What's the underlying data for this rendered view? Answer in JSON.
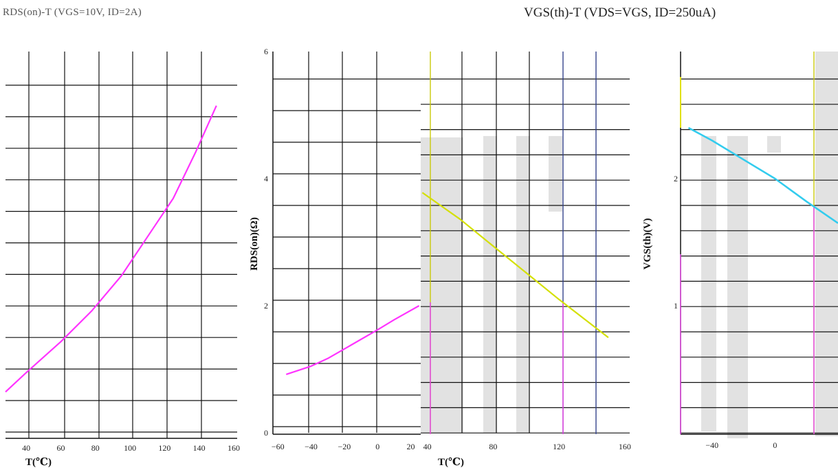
{
  "titles": {
    "left": "RDS(on)-T (VGS=10V, ID=2A)",
    "right": "VGS(th)-T (VDS=VGS, ID=250uA)"
  },
  "colors": {
    "grid": "#111111",
    "rds_curve": "#ff33ff",
    "vgs_curve_a": "#d4e000",
    "vgs_curve_b": "#33ccee",
    "shade": "#e2e2e2",
    "accent_magenta": "#ee44ee",
    "accent_yellow": "#e0e000",
    "accent_blue": "#334499"
  },
  "chart_data": [
    {
      "id": "rds-left",
      "type": "line",
      "x_ticks": [
        40,
        60,
        80,
        100,
        120,
        140,
        160
      ],
      "xlabel": "T(℃)",
      "xlim": [
        28,
        162
      ],
      "ylim": [
        0,
        1
      ],
      "grid": true,
      "series": [
        {
          "x": [
            28,
            40,
            60,
            78,
            95,
            110,
            125,
            138,
            150
          ],
          "y": [
            0.12,
            0.17,
            0.25,
            0.33,
            0.42,
            0.52,
            0.62,
            0.74,
            0.86
          ]
        }
      ]
    },
    {
      "id": "rds-middle",
      "type": "line",
      "x_ticks": [
        -60,
        -40,
        -20,
        0,
        20
      ],
      "y_ticks": [
        0,
        2,
        4,
        6
      ],
      "ylabel": "RDS(on)(Ω)",
      "xlim": [
        -63,
        26
      ],
      "ylim": [
        0,
        6
      ],
      "grid": true,
      "series": [
        {
          "x": [
            -55,
            -40,
            -30,
            -20,
            -10,
            0,
            10,
            25
          ],
          "y": [
            0.92,
            1.05,
            1.17,
            1.32,
            1.47,
            1.62,
            1.78,
            2.0
          ]
        }
      ]
    },
    {
      "id": "vgs-middle",
      "type": "line",
      "x_ticks": [
        40,
        80,
        120,
        160
      ],
      "xlabel": "T(℃)",
      "xlim": [
        36,
        163
      ],
      "ylim": [
        0,
        1
      ],
      "grid": true,
      "series": [
        {
          "x": [
            37,
            60,
            80,
            100,
            120,
            150
          ],
          "y": [
            0.63,
            0.56,
            0.49,
            0.42,
            0.35,
            0.25
          ]
        }
      ]
    },
    {
      "id": "vgs-right",
      "type": "line",
      "x_ticks": [
        -40,
        0
      ],
      "y_ticks": [
        1,
        2
      ],
      "ylabel": "VGS(th)(V)",
      "xlim": [
        -60,
        40
      ],
      "ylim": [
        0,
        3
      ],
      "grid": true,
      "series": [
        {
          "x": [
            -55,
            -40,
            -20,
            0,
            20,
            40
          ],
          "y": [
            2.4,
            2.3,
            2.15,
            2.0,
            1.82,
            1.65
          ]
        }
      ]
    }
  ]
}
